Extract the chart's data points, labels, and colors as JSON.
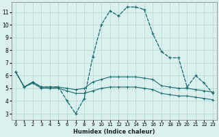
{
  "xlabel": "Humidex (Indice chaleur)",
  "background_color": "#d9f0ee",
  "grid_color": "#b0d8d5",
  "line_color": "#1a6b6b",
  "hours": [
    0,
    1,
    2,
    3,
    4,
    5,
    6,
    7,
    8,
    9,
    10,
    11,
    12,
    13,
    14,
    15,
    16,
    17,
    18,
    19,
    20,
    21,
    22,
    23
  ],
  "line_main": [
    6.3,
    5.1,
    5.5,
    5.1,
    5.1,
    5.1,
    4.0,
    3.0,
    4.2,
    7.5,
    10.0,
    11.1,
    10.7,
    11.4,
    11.4,
    11.2,
    9.3,
    7.9,
    7.4,
    7.4,
    5.1,
    6.0,
    5.4,
    4.6
  ],
  "line_dot": [
    6.3,
    5.1,
    5.5,
    5.1,
    5.1,
    5.1,
    4.0,
    3.0,
    4.2,
    7.5,
    10.0,
    11.1,
    10.7,
    11.4,
    11.4,
    11.2,
    9.3,
    7.9,
    7.4,
    7.4,
    5.1,
    6.0,
    5.4,
    4.6
  ],
  "line_low": [
    6.3,
    5.1,
    5.4,
    5.0,
    5.0,
    5.0,
    4.8,
    4.6,
    4.6,
    4.8,
    5.0,
    5.1,
    5.1,
    5.1,
    5.1,
    5.0,
    4.9,
    4.6,
    4.5,
    4.4,
    4.4,
    4.3,
    4.2,
    4.1
  ],
  "line_high": [
    6.3,
    5.1,
    5.5,
    5.1,
    5.1,
    5.1,
    5.0,
    4.9,
    5.0,
    5.5,
    5.7,
    5.9,
    5.9,
    5.9,
    5.9,
    5.8,
    5.7,
    5.2,
    5.1,
    5.0,
    5.0,
    4.9,
    4.8,
    4.7
  ],
  "ylim": [
    2.5,
    11.8
  ],
  "xlim": [
    -0.5,
    23.5
  ],
  "yticks": [
    3,
    4,
    5,
    6,
    7,
    8,
    9,
    10,
    11
  ],
  "xticks": [
    0,
    1,
    2,
    3,
    4,
    5,
    6,
    7,
    8,
    9,
    10,
    11,
    12,
    13,
    14,
    15,
    16,
    17,
    18,
    19,
    20,
    21,
    22,
    23
  ],
  "xlabel_fontsize": 6.0,
  "tick_fontsize": 5.0
}
